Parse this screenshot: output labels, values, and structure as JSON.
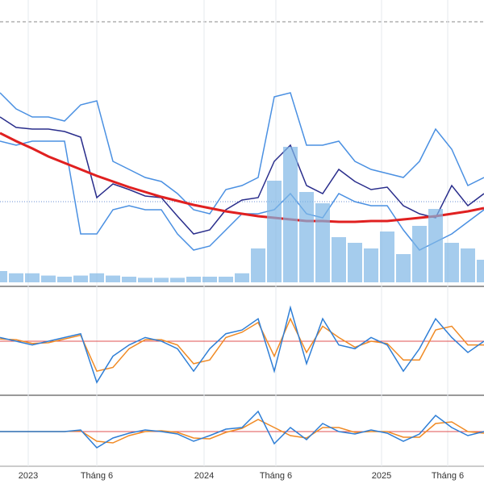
{
  "chart_data": [
    {
      "type": "line",
      "x": [
        0,
        1,
        2,
        3,
        4,
        5,
        6,
        7,
        8,
        9,
        10,
        11,
        12,
        13,
        14,
        15,
        16,
        17,
        18,
        19,
        20,
        21,
        22,
        23,
        24,
        25,
        26,
        27,
        28,
        29,
        30
      ],
      "xlim": [
        0,
        30
      ],
      "xticks": [
        {
          "value": 1.75,
          "label": "2023"
        },
        {
          "value": 6,
          "label": "Tháng 6"
        },
        {
          "value": 12.65,
          "label": "2024"
        },
        {
          "value": 17.1,
          "label": "Tháng 6"
        },
        {
          "value": 23.65,
          "label": "2025"
        },
        {
          "value": 27.75,
          "label": "Tháng 6"
        }
      ],
      "ylim": [
        0,
        350
      ],
      "y2lim": [
        0,
        250
      ],
      "grid": true,
      "series": [
        {
          "color": "#4a90e2",
          "values": [
            235,
            215,
            205,
            205,
            200,
            220,
            225,
            150,
            140,
            130,
            125,
            110,
            90,
            85,
            115,
            120,
            130,
            230,
            235,
            170,
            170,
            175,
            150,
            140,
            135,
            130,
            150,
            190,
            165,
            120,
            130
          ]
        },
        {
          "color": "#4a90e2",
          "values": [
            175,
            170,
            175,
            175,
            175,
            60,
            60,
            90,
            95,
            90,
            90,
            60,
            40,
            45,
            65,
            85,
            85,
            90,
            110,
            85,
            80,
            110,
            100,
            95,
            95,
            65,
            40,
            50,
            60,
            75,
            90
          ]
        },
        {
          "color": "#2a2e8c",
          "values": [
            205,
            192,
            190,
            190,
            187,
            180,
            105,
            122,
            115,
            107,
            105,
            82,
            60,
            65,
            90,
            102,
            105,
            150,
            170,
            120,
            110,
            140,
            125,
            115,
            118,
            95,
            85,
            80,
            120,
            95,
            110
          ]
        },
        {
          "color": "#e02020",
          "values": [
            185,
            175,
            166,
            156,
            148,
            140,
            132,
            125,
            118,
            112,
            106,
            101,
            96,
            92,
            88,
            85,
            82,
            80,
            78,
            76,
            76,
            75,
            75,
            76,
            76,
            78,
            80,
            82,
            85,
            88,
            92
          ]
        },
        {
          "type": "bar",
          "axis": "y2",
          "color": "#7fb6e6",
          "values": [
            10,
            8,
            8,
            6,
            5,
            6,
            8,
            6,
            5,
            4,
            4,
            4,
            5,
            5,
            5,
            8,
            30,
            90,
            120,
            80,
            70,
            40,
            35,
            30,
            45,
            25,
            50,
            65,
            35,
            30,
            20
          ]
        }
      ]
    },
    {
      "type": "line",
      "ylim": [
        -70,
        70
      ],
      "series": [
        {
          "color": "#f08a24",
          "values": [
            3,
            2,
            -3,
            -2,
            3,
            8,
            -40,
            -35,
            -10,
            2,
            2,
            -5,
            -30,
            -25,
            5,
            12,
            25,
            -20,
            30,
            -15,
            20,
            5,
            -8,
            0,
            -3,
            -25,
            -25,
            15,
            20,
            -5,
            -5
          ]
        },
        {
          "color": "#2e7ed6",
          "values": [
            5,
            0,
            -5,
            0,
            5,
            10,
            -55,
            -20,
            -5,
            5,
            0,
            -10,
            -40,
            -10,
            10,
            15,
            30,
            -40,
            45,
            -30,
            30,
            -5,
            -10,
            5,
            -5,
            -40,
            -10,
            30,
            5,
            -15,
            0
          ]
        }
      ]
    },
    {
      "type": "line",
      "ylim": [
        -40,
        40
      ],
      "series": [
        {
          "color": "#f08a24",
          "values": [
            0,
            0,
            0,
            0,
            0,
            1,
            -12,
            -14,
            -5,
            0,
            1,
            -1,
            -8,
            -9,
            -1,
            4,
            15,
            5,
            -5,
            -8,
            5,
            5,
            -1,
            0,
            0,
            -7,
            -7,
            10,
            12,
            0,
            -2
          ]
        },
        {
          "color": "#2e7ed6",
          "values": [
            0,
            0,
            0,
            0,
            0,
            2,
            -20,
            -8,
            -2,
            2,
            0,
            -3,
            -12,
            -5,
            3,
            5,
            25,
            -15,
            5,
            -10,
            10,
            0,
            -3,
            2,
            -2,
            -12,
            -3,
            20,
            5,
            -5,
            0
          ]
        }
      ]
    }
  ]
}
